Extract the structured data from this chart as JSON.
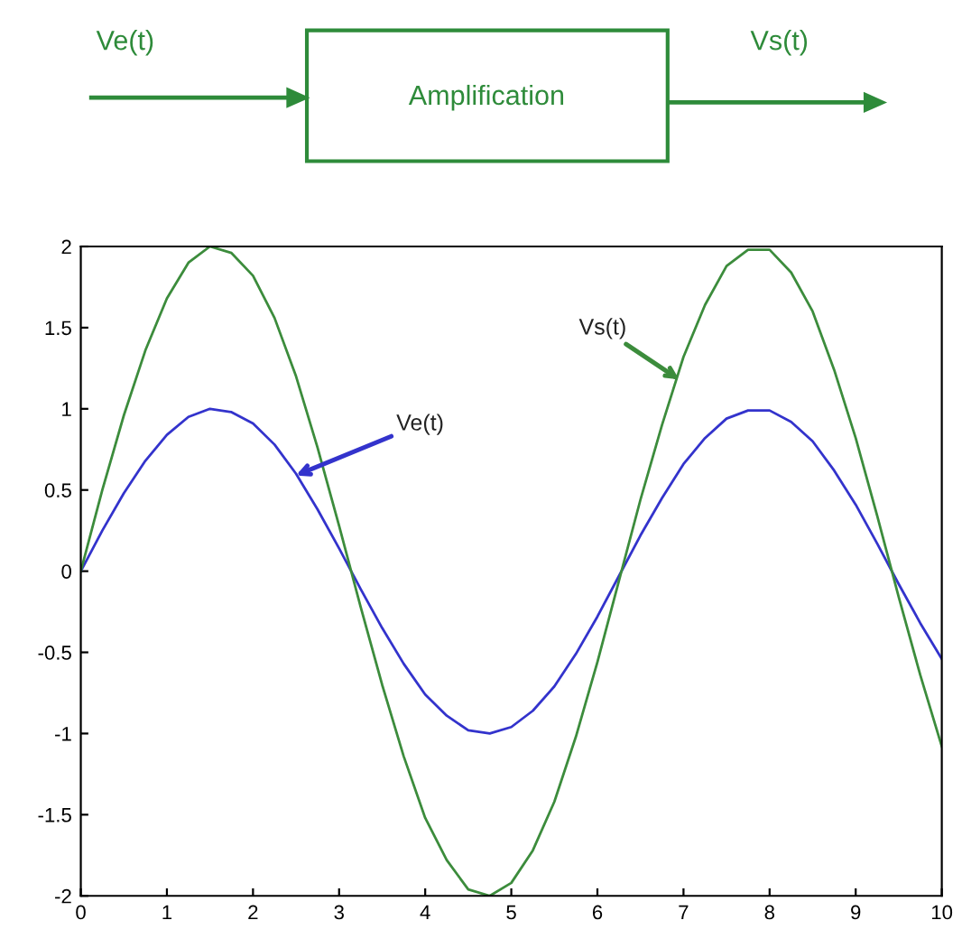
{
  "chart_data": {
    "type": "line",
    "x": [
      0,
      0.25,
      0.5,
      0.75,
      1,
      1.25,
      1.5,
      1.75,
      2,
      2.25,
      2.5,
      2.75,
      3,
      3.25,
      3.5,
      3.75,
      4,
      4.25,
      4.5,
      4.75,
      5,
      5.25,
      5.5,
      5.75,
      6,
      6.25,
      6.5,
      6.75,
      7,
      7.25,
      7.5,
      7.75,
      8,
      8.25,
      8.5,
      8.75,
      9,
      9.25,
      9.5,
      9.75,
      10
    ],
    "series": [
      {
        "color": "#3333cc",
        "values": [
          0,
          0.25,
          0.48,
          0.68,
          0.84,
          0.95,
          1.0,
          0.98,
          0.91,
          0.78,
          0.6,
          0.38,
          0.14,
          -0.11,
          -0.35,
          -0.57,
          -0.76,
          -0.89,
          -0.98,
          -1.0,
          -0.96,
          -0.86,
          -0.71,
          -0.51,
          -0.28,
          -0.03,
          0.22,
          0.45,
          0.66,
          0.82,
          0.94,
          0.99,
          0.99,
          0.92,
          0.8,
          0.62,
          0.41,
          0.17,
          -0.08,
          -0.32,
          -0.54
        ]
      },
      {
        "color": "#3c8c3c",
        "values": [
          0,
          0.5,
          0.96,
          1.36,
          1.68,
          1.9,
          2.0,
          1.96,
          1.82,
          1.56,
          1.2,
          0.76,
          0.28,
          -0.22,
          -0.7,
          -1.14,
          -1.52,
          -1.78,
          -1.96,
          -2.0,
          -1.92,
          -1.72,
          -1.42,
          -1.02,
          -0.56,
          -0.06,
          0.44,
          0.9,
          1.32,
          1.64,
          1.88,
          1.98,
          1.98,
          1.84,
          1.6,
          1.24,
          0.82,
          0.34,
          -0.16,
          -0.64,
          -1.08
        ]
      }
    ],
    "xlim": [
      0,
      10
    ],
    "xticks": [
      0,
      1,
      2,
      3,
      4,
      5,
      6,
      7,
      8,
      9,
      10
    ],
    "ylim": [
      -2,
      2
    ],
    "yticks": [
      -2,
      -1.5,
      -1,
      -0.5,
      0,
      0.5,
      1,
      1.5,
      2
    ],
    "grid": false,
    "marker": "none",
    "line_style": "solid",
    "annotations": [
      {
        "text": "Ve(t)",
        "x": 2.5,
        "y": 0.59
      },
      {
        "text": "Vs(t)",
        "x": 6.95,
        "y": 1.18
      },
      "Ve(t)",
      "Amplification",
      "Vs(t)"
    ]
  }
}
